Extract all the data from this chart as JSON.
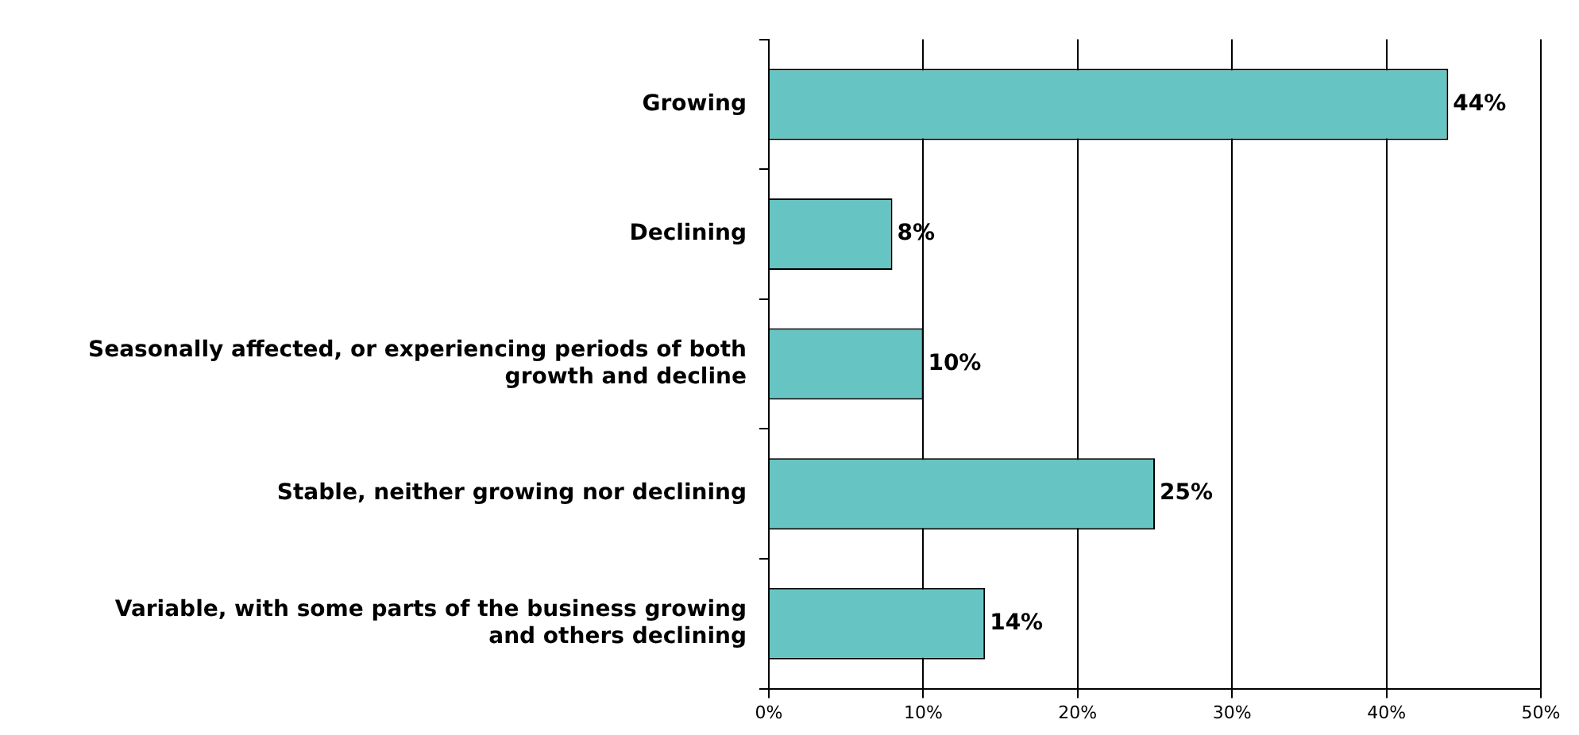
{
  "chart_data": {
    "type": "bar",
    "orientation": "horizontal",
    "categories": [
      "Growing",
      "Declining",
      "Seasonally affected, or experiencing periods of both growth and decline",
      "Stable, neither growing nor declining",
      "Variable, with some parts of the business growing and others declining"
    ],
    "values": [
      44,
      8,
      10,
      25,
      14
    ],
    "value_labels": [
      "44%",
      "8%",
      "10%",
      "25%",
      "14%"
    ],
    "color": "#66c4c2",
    "xlim": [
      0,
      50
    ],
    "xticks": [
      {
        "value": 0,
        "label": "0%"
      },
      {
        "value": 10,
        "label": "10%"
      },
      {
        "value": 20,
        "label": "20%"
      },
      {
        "value": 30,
        "label": "30%"
      },
      {
        "value": 40,
        "label": "40%"
      },
      {
        "value": 50,
        "label": "50%"
      }
    ],
    "grid": "x",
    "legend": false
  }
}
